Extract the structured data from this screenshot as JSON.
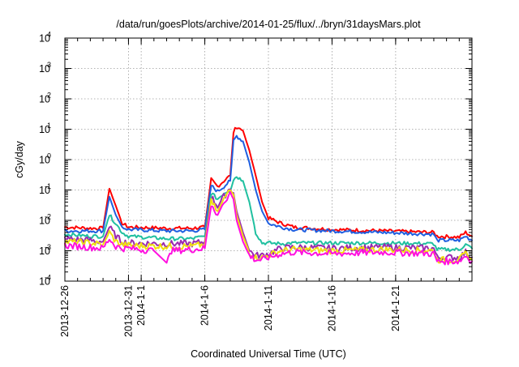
{
  "chart_data": {
    "type": "line",
    "title": "/data/run/goesPlots/archive/2014-01-25/flux/../bryn/31daysMars.plot",
    "xlabel": "Coordinated Universal Time (UTC)",
    "ylabel": "cGy/day",
    "yscale": "log",
    "ylim": [
      0.0001,
      10000
    ],
    "xlim": [
      "2013-12-26",
      "2014-01-27"
    ],
    "grid": true,
    "x_ticks": [
      "2013-12-26",
      "2013-12-31",
      "2014-1-1",
      "2014-1-6",
      "2014-1-11",
      "2014-1-16",
      "2014-1-21"
    ],
    "y_ticks": [
      {
        "value": 0.0001,
        "base": "10",
        "exp": "-4"
      },
      {
        "value": 0.001,
        "base": "10",
        "exp": "-3"
      },
      {
        "value": 0.01,
        "base": "10",
        "exp": "-2"
      },
      {
        "value": 0.1,
        "base": "10",
        "exp": "-1"
      },
      {
        "value": 1,
        "base": "10",
        "exp": "0"
      },
      {
        "value": 10,
        "base": "10",
        "exp": "1"
      },
      {
        "value": 100,
        "base": "10",
        "exp": "2"
      },
      {
        "value": 1000,
        "base": "10",
        "exp": "3"
      },
      {
        "value": 10000,
        "base": "10",
        "exp": "4"
      }
    ],
    "series": [
      {
        "color": "#ff0000",
        "points": [
          [
            "2013-12-26",
            0.006
          ],
          [
            "2013-12-28",
            0.0055
          ],
          [
            "2013-12-29",
            0.0055
          ],
          [
            "2013-12-29 12:00",
            0.11
          ],
          [
            "2013-12-30",
            0.03
          ],
          [
            "2013-12-30 12:00",
            0.008
          ],
          [
            "2013-12-31",
            0.006
          ],
          [
            "2014-01-03",
            0.0055
          ],
          [
            "2014-01-05",
            0.0055
          ],
          [
            "2014-01-06",
            0.006
          ],
          [
            "2014-01-06 12:00",
            0.22
          ],
          [
            "2014-01-07",
            0.13
          ],
          [
            "2014-01-07 12:00",
            0.2
          ],
          [
            "2014-01-08",
            0.3
          ],
          [
            "2014-01-08 06:00",
            8
          ],
          [
            "2014-01-08 12:00",
            12
          ],
          [
            "2014-01-09",
            9
          ],
          [
            "2014-01-09 12:00",
            2
          ],
          [
            "2014-01-10",
            0.3
          ],
          [
            "2014-01-10 12:00",
            0.04
          ],
          [
            "2014-01-11",
            0.012
          ],
          [
            "2014-01-12",
            0.008
          ],
          [
            "2014-01-13",
            0.006
          ],
          [
            "2014-01-16",
            0.005
          ],
          [
            "2014-01-20",
            0.0045
          ],
          [
            "2014-01-24",
            0.004
          ],
          [
            "2014-01-24 06:00",
            0.003
          ],
          [
            "2014-01-26",
            0.0028
          ],
          [
            "2014-01-26 12:00",
            0.004
          ],
          [
            "2014-01-27",
            0.003
          ]
        ]
      },
      {
        "color": "#1f5fe0",
        "points": [
          [
            "2013-12-26",
            0.0045
          ],
          [
            "2013-12-28",
            0.0045
          ],
          [
            "2013-12-29",
            0.0045
          ],
          [
            "2013-12-29 12:00",
            0.06
          ],
          [
            "2013-12-30",
            0.015
          ],
          [
            "2013-12-30 12:00",
            0.006
          ],
          [
            "2013-12-31",
            0.005
          ],
          [
            "2014-01-03",
            0.0045
          ],
          [
            "2014-01-05",
            0.0045
          ],
          [
            "2014-01-06",
            0.005
          ],
          [
            "2014-01-06 12:00",
            0.14
          ],
          [
            "2014-01-07",
            0.09
          ],
          [
            "2014-01-07 12:00",
            0.13
          ],
          [
            "2014-01-08",
            0.2
          ],
          [
            "2014-01-08 06:00",
            4
          ],
          [
            "2014-01-08 12:00",
            6
          ],
          [
            "2014-01-09",
            4
          ],
          [
            "2014-01-09 12:00",
            0.8
          ],
          [
            "2014-01-10",
            0.1
          ],
          [
            "2014-01-10 12:00",
            0.02
          ],
          [
            "2014-01-11",
            0.008
          ],
          [
            "2014-01-12",
            0.006
          ],
          [
            "2014-01-13",
            0.005
          ],
          [
            "2014-01-16",
            0.0045
          ],
          [
            "2014-01-20",
            0.004
          ],
          [
            "2014-01-24",
            0.0035
          ],
          [
            "2014-01-24 06:00",
            0.0022
          ],
          [
            "2014-01-26",
            0.0022
          ],
          [
            "2014-01-26 12:00",
            0.003
          ],
          [
            "2014-01-27",
            0.0022
          ]
        ]
      },
      {
        "color": "#20c0a0",
        "points": [
          [
            "2013-12-26",
            0.0035
          ],
          [
            "2013-12-28",
            0.003
          ],
          [
            "2013-12-29",
            0.003
          ],
          [
            "2013-12-29 12:00",
            0.015
          ],
          [
            "2013-12-30",
            0.008
          ],
          [
            "2013-12-30 12:00",
            0.004
          ],
          [
            "2013-12-31",
            0.003
          ],
          [
            "2014-01-03",
            0.0025
          ],
          [
            "2014-01-05",
            0.0025
          ],
          [
            "2014-01-06",
            0.003
          ],
          [
            "2014-01-06 12:00",
            0.08
          ],
          [
            "2014-01-07",
            0.05
          ],
          [
            "2014-01-07 12:00",
            0.08
          ],
          [
            "2014-01-08",
            0.1
          ],
          [
            "2014-01-08 06:00",
            0.22
          ],
          [
            "2014-01-08 12:00",
            0.28
          ],
          [
            "2014-01-09",
            0.2
          ],
          [
            "2014-01-09 12:00",
            0.04
          ],
          [
            "2014-01-10",
            0.004
          ],
          [
            "2014-01-10 12:00",
            0.0018
          ],
          [
            "2014-01-11",
            0.0018
          ],
          [
            "2014-01-12",
            0.0017
          ],
          [
            "2014-01-13",
            0.0018
          ],
          [
            "2014-01-16",
            0.0018
          ],
          [
            "2014-01-20",
            0.0018
          ],
          [
            "2014-01-24",
            0.0017
          ],
          [
            "2014-01-24 06:00",
            0.0011
          ],
          [
            "2014-01-26",
            0.0011
          ],
          [
            "2014-01-26 12:00",
            0.0016
          ],
          [
            "2014-01-27",
            0.0012
          ]
        ]
      },
      {
        "color": "#9a2ab0",
        "points": [
          [
            "2013-12-26",
            0.0025
          ],
          [
            "2013-12-28",
            0.0022
          ],
          [
            "2013-12-29",
            0.002
          ],
          [
            "2013-12-29 12:00",
            0.006
          ],
          [
            "2013-12-30",
            0.003
          ],
          [
            "2013-12-30 12:00",
            0.002
          ],
          [
            "2013-12-31",
            0.0018
          ],
          [
            "2014-01-03",
            0.0017
          ],
          [
            "2014-01-05",
            0.0017
          ],
          [
            "2014-01-06",
            0.002
          ],
          [
            "2014-01-06 12:00",
            0.06
          ],
          [
            "2014-01-07",
            0.03
          ],
          [
            "2014-01-07 12:00",
            0.06
          ],
          [
            "2014-01-08",
            0.12
          ],
          [
            "2014-01-08 06:00",
            0.08
          ],
          [
            "2014-01-08 12:00",
            0.02
          ],
          [
            "2014-01-09",
            0.004
          ],
          [
            "2014-01-09 12:00",
            0.001
          ],
          [
            "2014-01-10",
            0.0007
          ],
          [
            "2014-01-10 12:00",
            0.0007
          ],
          [
            "2014-01-11",
            0.0008
          ],
          [
            "2014-01-12",
            0.0012
          ],
          [
            "2014-01-13",
            0.0013
          ],
          [
            "2014-01-16",
            0.0012
          ],
          [
            "2014-01-20",
            0.0013
          ],
          [
            "2014-01-24",
            0.0012
          ],
          [
            "2014-01-24 06:00",
            0.0006
          ],
          [
            "2014-01-26",
            0.0006
          ],
          [
            "2014-01-26 12:00",
            0.0009
          ],
          [
            "2014-01-27",
            0.0006
          ]
        ]
      },
      {
        "color": "#f0e010",
        "points": [
          [
            "2013-12-26",
            0.002
          ],
          [
            "2013-12-28",
            0.0018
          ],
          [
            "2013-12-29",
            0.0016
          ],
          [
            "2013-12-29 12:00",
            0.004
          ],
          [
            "2013-12-30",
            0.002
          ],
          [
            "2013-12-30 12:00",
            0.0016
          ],
          [
            "2013-12-31",
            0.0015
          ],
          [
            "2014-01-03",
            0.0014
          ],
          [
            "2014-01-05",
            0.0014
          ],
          [
            "2014-01-06",
            0.0016
          ],
          [
            "2014-01-06 12:00",
            0.04
          ],
          [
            "2014-01-07",
            0.02
          ],
          [
            "2014-01-07 12:00",
            0.05
          ],
          [
            "2014-01-08",
            0.1
          ],
          [
            "2014-01-08 06:00",
            0.07
          ],
          [
            "2014-01-08 12:00",
            0.015
          ],
          [
            "2014-01-09",
            0.003
          ],
          [
            "2014-01-09 12:00",
            0.0009
          ],
          [
            "2014-01-10",
            0.0006
          ],
          [
            "2014-01-10 12:00",
            0.0006
          ],
          [
            "2014-01-11",
            0.0007
          ],
          [
            "2014-01-12",
            0.001
          ],
          [
            "2014-01-13",
            0.0011
          ],
          [
            "2014-01-16",
            0.001
          ],
          [
            "2014-01-20",
            0.0011
          ],
          [
            "2014-01-24",
            0.001
          ],
          [
            "2014-01-24 06:00",
            0.0005
          ],
          [
            "2014-01-26",
            0.0005
          ],
          [
            "2014-01-26 12:00",
            0.0008
          ],
          [
            "2014-01-27",
            0.0005
          ]
        ]
      },
      {
        "color": "#ff10e0",
        "points": [
          [
            "2013-12-26",
            0.0015
          ],
          [
            "2013-12-28",
            0.0013
          ],
          [
            "2013-12-29",
            0.0012
          ],
          [
            "2013-12-29 12:00",
            0.0025
          ],
          [
            "2013-12-30",
            0.0014
          ],
          [
            "2013-12-30 12:00",
            0.0012
          ],
          [
            "2013-12-31",
            0.0012
          ],
          [
            "2014-01-02",
            0.001
          ],
          [
            "2014-01-03",
            0.0004
          ],
          [
            "2014-01-03 06:00",
            0.001
          ],
          [
            "2014-01-05",
            0.0011
          ],
          [
            "2014-01-06",
            0.0012
          ],
          [
            "2014-01-06 12:00",
            0.03
          ],
          [
            "2014-01-07",
            0.015
          ],
          [
            "2014-01-07 12:00",
            0.04
          ],
          [
            "2014-01-08",
            0.08
          ],
          [
            "2014-01-08 06:00",
            0.05
          ],
          [
            "2014-01-08 12:00",
            0.01
          ],
          [
            "2014-01-09",
            0.002
          ],
          [
            "2014-01-09 12:00",
            0.0007
          ],
          [
            "2014-01-10",
            0.0005
          ],
          [
            "2014-01-10 12:00",
            0.0005
          ],
          [
            "2014-01-11",
            0.0006
          ],
          [
            "2014-01-12",
            0.0008
          ],
          [
            "2014-01-13",
            0.0009
          ],
          [
            "2014-01-16",
            0.0008
          ],
          [
            "2014-01-20",
            0.0009
          ],
          [
            "2014-01-24",
            0.0008
          ],
          [
            "2014-01-24 06:00",
            0.00045
          ],
          [
            "2014-01-26",
            0.00045
          ],
          [
            "2014-01-26 12:00",
            0.0007
          ],
          [
            "2014-01-27",
            0.00045
          ]
        ]
      }
    ]
  }
}
